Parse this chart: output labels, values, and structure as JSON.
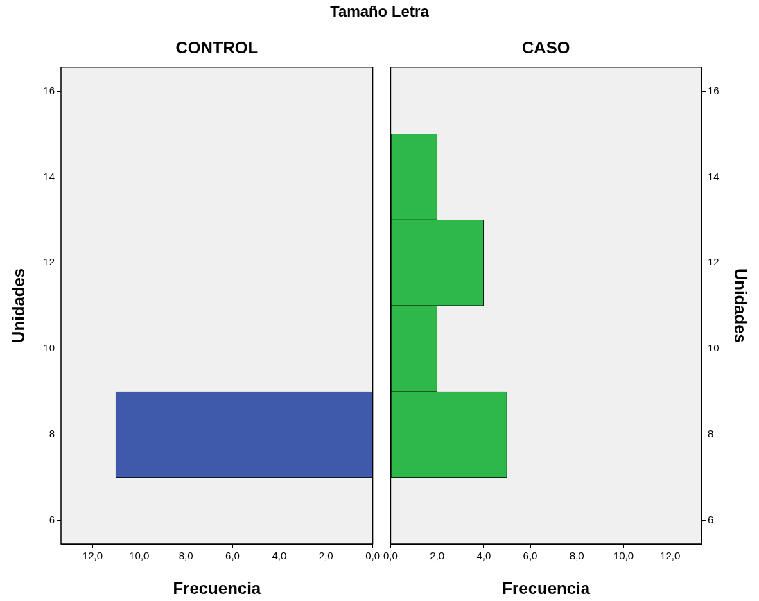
{
  "chart_data": [
    {
      "type": "bar",
      "title": "Tamaño Letra",
      "subtitle": "CONTROL",
      "orientation": "horizontal",
      "x": [
        8
      ],
      "values": [
        11
      ],
      "color": "#3f59ab",
      "xlabel": "Frecuencia",
      "ylabel": "Unidades",
      "xlim": [
        13.35,
        0
      ],
      "xticks": [
        {
          "value": 12,
          "label": "12,0"
        },
        {
          "value": 10,
          "label": "10,0"
        },
        {
          "value": 8,
          "label": "8,0"
        },
        {
          "value": 6,
          "label": "6,0"
        },
        {
          "value": 4,
          "label": "4,0"
        },
        {
          "value": 2,
          "label": "2,0"
        },
        {
          "value": 0,
          "label": "0,0"
        }
      ],
      "ylim": [
        5.45,
        16.56
      ],
      "yticks": [
        6,
        8,
        10,
        12,
        14,
        16
      ]
    },
    {
      "type": "bar",
      "subtitle": "CASO",
      "orientation": "horizontal",
      "x": [
        8,
        10,
        12,
        14
      ],
      "values": [
        5,
        2,
        4,
        2
      ],
      "color": "#2fb84a",
      "xlabel": "Frecuencia",
      "ylabel": "Unidades",
      "xlim": [
        0,
        13.35
      ],
      "xticks": [
        {
          "value": 0,
          "label": "0,0"
        },
        {
          "value": 2,
          "label": "2,0"
        },
        {
          "value": 4,
          "label": "4,0"
        },
        {
          "value": 6,
          "label": "6,0"
        },
        {
          "value": 8,
          "label": "8,0"
        },
        {
          "value": 10,
          "label": "10,0"
        },
        {
          "value": 12,
          "label": "12,0"
        }
      ],
      "ylim": [
        5.45,
        16.56
      ],
      "yticks": [
        6,
        8,
        10,
        12,
        14,
        16
      ]
    }
  ]
}
